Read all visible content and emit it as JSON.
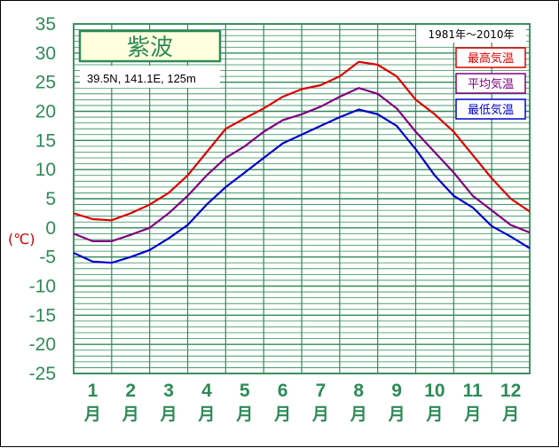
{
  "chart_data": {
    "type": "line",
    "title": "紫波",
    "location": "39.5N,  141.1E,  125m",
    "period": "1981年〜2010年",
    "ylabel": "(℃)",
    "ylim": [
      -25,
      35
    ],
    "yticks": [
      "35",
      "30",
      "25",
      "20",
      "15",
      "10",
      "5",
      "0",
      "-5",
      "-10",
      "-15",
      "-20",
      "-25"
    ],
    "months": [
      "1",
      "2",
      "3",
      "4",
      "5",
      "6",
      "7",
      "8",
      "9",
      "10",
      "11",
      "12"
    ],
    "month_suffix": "月",
    "grid": true,
    "legend_position": "top-right",
    "series": [
      {
        "name": "最高気温",
        "color": "#dd0000",
        "x": [
          0,
          0.5,
          1,
          1.5,
          2,
          2.5,
          3,
          3.5,
          4,
          4.5,
          5,
          5.5,
          6,
          6.5,
          7,
          7.5,
          8,
          8.5,
          9,
          9.5,
          10,
          10.5,
          11,
          11.5,
          12
        ],
        "values": [
          2.5,
          1.5,
          1.3,
          2.5,
          4,
          6,
          9,
          13,
          17,
          18.8,
          20.5,
          22.5,
          23.8,
          24.5,
          26,
          28.5,
          28,
          26,
          22,
          19.5,
          16.5,
          12.5,
          8.5,
          5,
          2.8
        ]
      },
      {
        "name": "平均気温",
        "color": "#800080",
        "x": [
          0,
          0.5,
          1,
          1.5,
          2,
          2.5,
          3,
          3.5,
          4,
          4.5,
          5,
          5.5,
          6,
          6.5,
          7,
          7.5,
          8,
          8.5,
          9,
          9.5,
          10,
          10.5,
          11,
          11.5,
          12
        ],
        "values": [
          -1,
          -2.3,
          -2.3,
          -1.2,
          0,
          2.5,
          5.5,
          9,
          12,
          14,
          16.5,
          18.5,
          19.5,
          20.8,
          22.5,
          24,
          23,
          20.5,
          16.5,
          13,
          9.5,
          5.5,
          3,
          0.5,
          -0.8
        ]
      },
      {
        "name": "最低気温",
        "color": "#0000cc",
        "x": [
          0,
          0.5,
          1,
          1.5,
          2,
          2.5,
          3,
          3.5,
          4,
          4.5,
          5,
          5.5,
          6,
          6.5,
          7,
          7.5,
          8,
          8.5,
          9,
          9.5,
          10,
          10.5,
          11,
          11.5,
          12
        ],
        "values": [
          -4.3,
          -5.8,
          -6,
          -5,
          -3.8,
          -1.8,
          0.5,
          4,
          7,
          9.5,
          12,
          14.5,
          16,
          17.5,
          19,
          20.3,
          19.5,
          17.5,
          13.5,
          9,
          5.5,
          3.5,
          0.3,
          -1.5,
          -3.5
        ]
      }
    ]
  }
}
